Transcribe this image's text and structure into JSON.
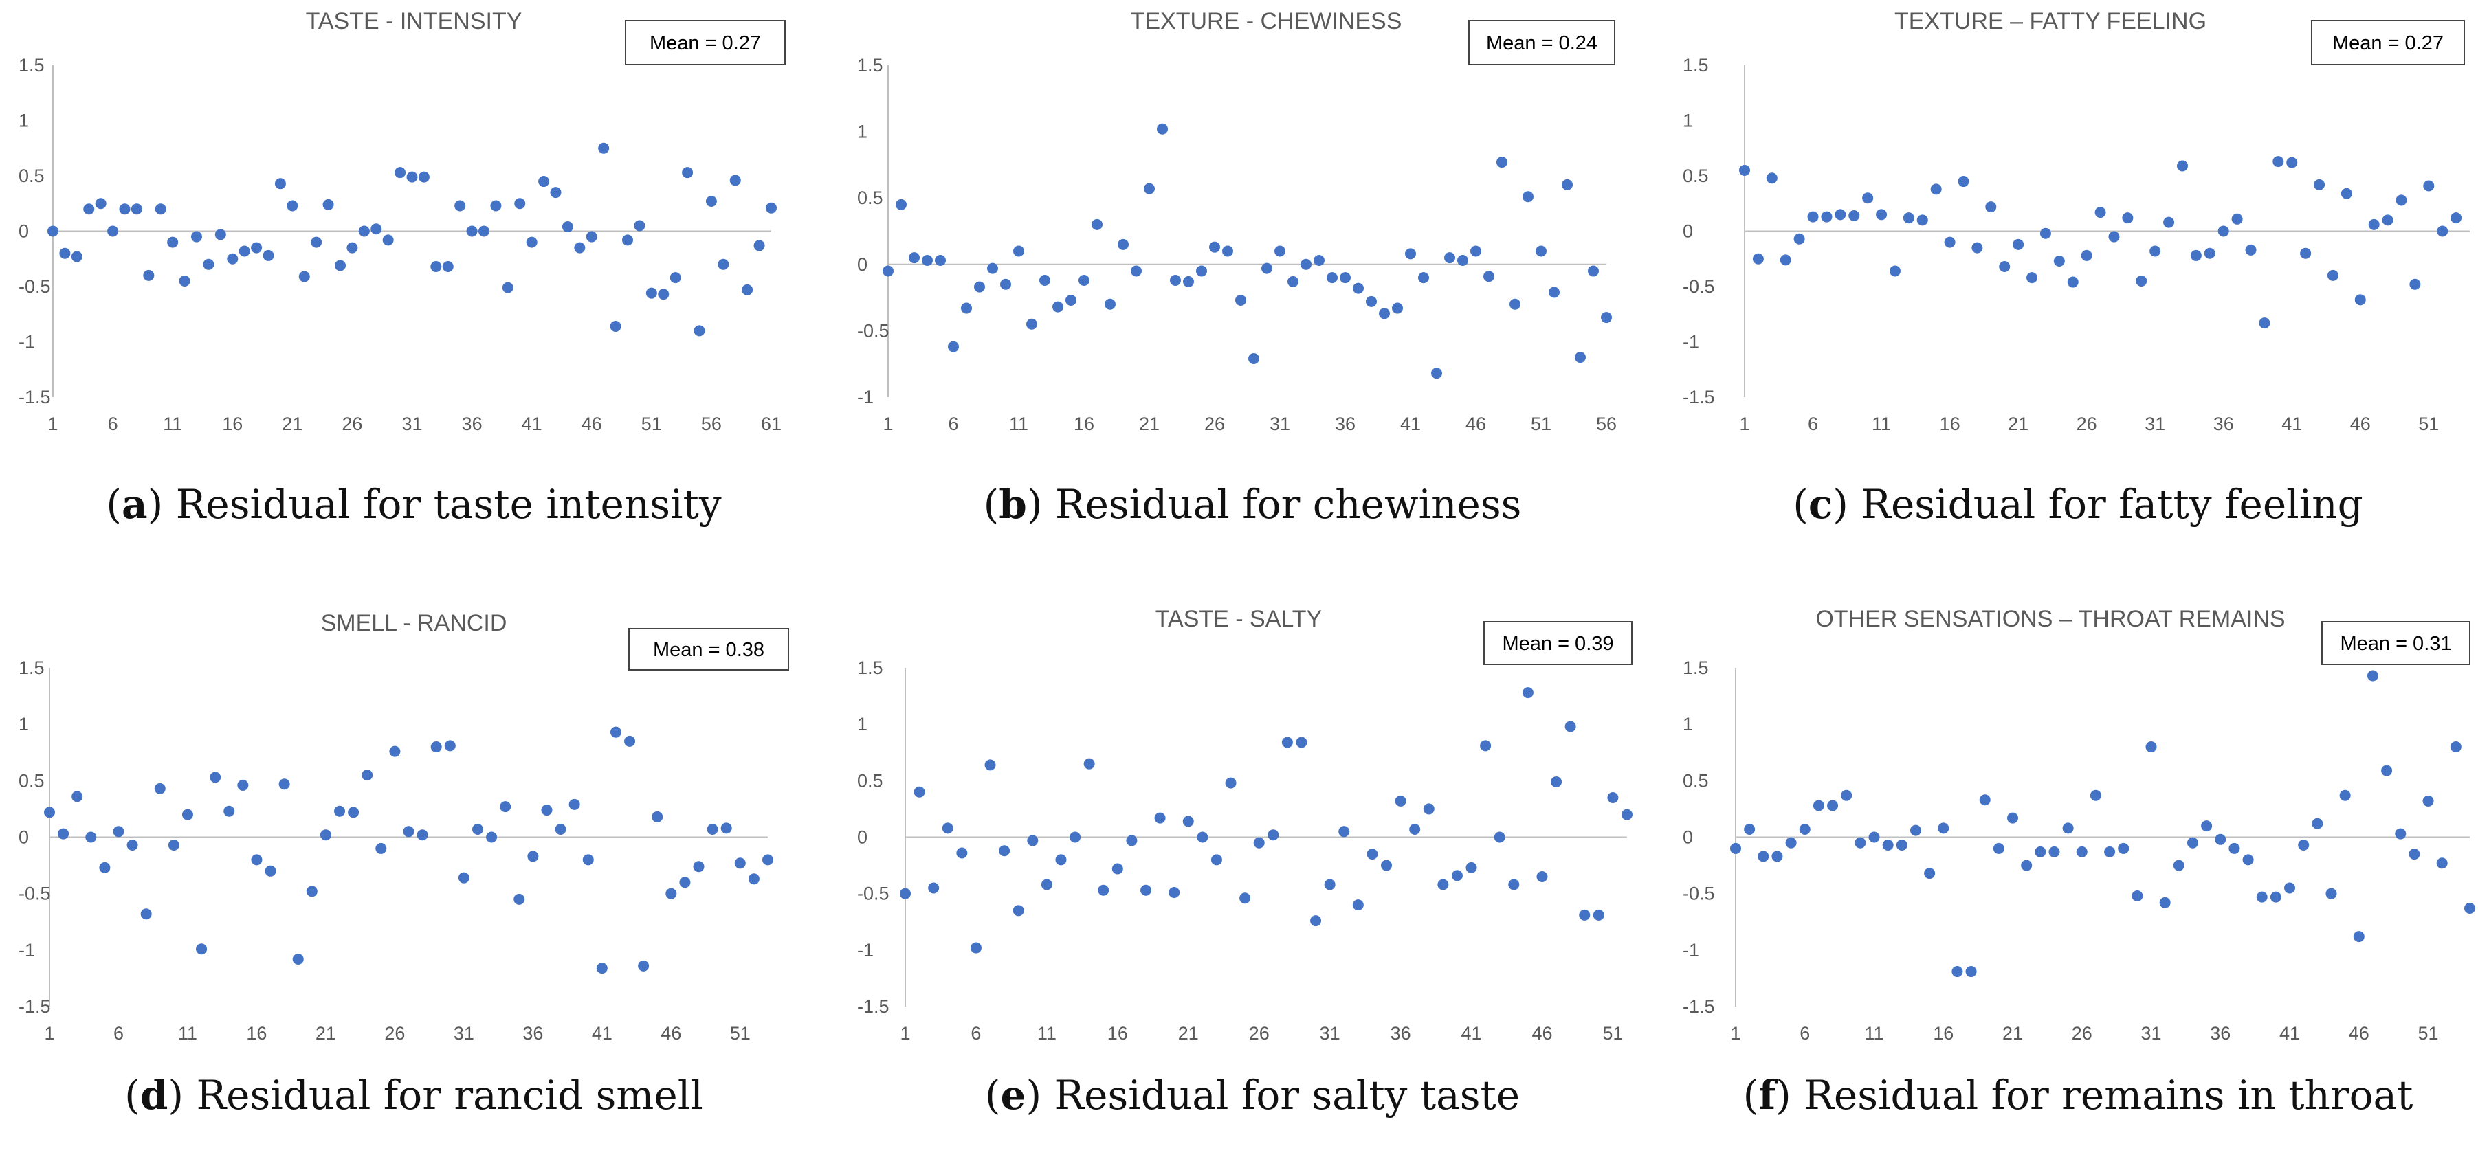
{
  "colors": {
    "marker": "#4472C4",
    "axis": "#BFBFBF",
    "text": "#595959",
    "mean_box_border": "#444444"
  },
  "chart_data": [
    {
      "id": "a",
      "type": "scatter",
      "title": "TASTE - INTENSITY",
      "mean_label": "Mean = 0.27",
      "caption_letter": "a",
      "caption_text": " Residual for taste intensity",
      "ylim": [
        -1.5,
        1.5
      ],
      "yticks": [
        1.5,
        1,
        0.5,
        0,
        -0.5,
        -1,
        -1.5
      ],
      "xlim": [
        1,
        61
      ],
      "xticks": [
        1,
        6,
        11,
        16,
        21,
        26,
        31,
        36,
        41,
        46,
        51,
        56,
        61
      ],
      "y": [
        0,
        -0.2,
        -0.23,
        0.2,
        0.25,
        0,
        0.2,
        0.2,
        -0.4,
        0.2,
        -0.1,
        -0.45,
        -0.05,
        -0.3,
        -0.03,
        -0.25,
        -0.18,
        -0.15,
        -0.22,
        0.43,
        0.23,
        -0.41,
        -0.1,
        0.24,
        -0.31,
        -0.15,
        0,
        0.02,
        -0.08,
        0.53,
        0.49,
        0.49,
        -0.32,
        -0.32,
        0.23,
        0,
        0,
        0.23,
        -0.51,
        0.25,
        -0.1,
        0.45,
        0.35,
        0.04,
        -0.15,
        -0.05,
        0.75,
        -0.86,
        -0.08,
        0.05,
        -0.56,
        -0.57,
        -0.42,
        0.53,
        -0.9,
        0.27,
        -0.3,
        0.46,
        -0.53,
        -0.13,
        0.21
      ]
    },
    {
      "id": "b",
      "type": "scatter",
      "title": "TEXTURE - CHEWINESS",
      "mean_label": "Mean = 0.24",
      "caption_letter": "b",
      "caption_text": " Residual for chewiness",
      "ylim": [
        -1,
        1.5
      ],
      "yticks": [
        1.5,
        1,
        0.5,
        0,
        -0.5,
        -1
      ],
      "xlim": [
        1,
        56
      ],
      "xticks": [
        1,
        6,
        11,
        16,
        21,
        26,
        31,
        36,
        41,
        46,
        51,
        56
      ],
      "y": [
        -0.05,
        0.45,
        0.05,
        0.03,
        0.03,
        -0.62,
        -0.33,
        -0.17,
        -0.03,
        -0.15,
        0.1,
        -0.45,
        -0.12,
        -0.32,
        -0.27,
        -0.12,
        0.3,
        -0.3,
        0.15,
        -0.05,
        0.57,
        1.02,
        -0.12,
        -0.13,
        -0.05,
        0.13,
        0.1,
        -0.27,
        -0.71,
        -0.03,
        0.1,
        -0.13,
        0,
        0.03,
        -0.1,
        -0.1,
        -0.18,
        -0.28,
        -0.37,
        -0.33,
        0.08,
        -0.1,
        -0.82,
        0.05,
        0.03,
        0.1,
        -0.09,
        0.77,
        -0.3,
        0.51,
        0.1,
        -0.21,
        0.6,
        -0.7,
        -0.05,
        -0.4
      ]
    },
    {
      "id": "c",
      "type": "scatter",
      "title": "TEXTURE – FATTY FEELING",
      "mean_label": "Mean = 0.27",
      "caption_letter": "c",
      "caption_text": " Residual for fatty feeling",
      "ylim": [
        -1.5,
        1.5
      ],
      "yticks": [
        1.5,
        1,
        0.5,
        0,
        -0.5,
        -1,
        -1.5
      ],
      "xlim": [
        1,
        54
      ],
      "xticks": [
        1,
        6,
        11,
        16,
        21,
        26,
        31,
        36,
        41,
        46,
        51
      ],
      "y": [
        0.55,
        -0.25,
        0.48,
        -0.26,
        -0.07,
        0.13,
        0.13,
        0.15,
        0.14,
        0.3,
        0.15,
        -0.36,
        0.12,
        0.1,
        0.38,
        -0.1,
        0.45,
        -0.15,
        0.22,
        -0.32,
        -0.12,
        -0.42,
        -0.02,
        -0.27,
        -0.46,
        -0.22,
        0.17,
        -0.05,
        0.12,
        -0.45,
        -0.18,
        0.08,
        0.59,
        -0.22,
        -0.2,
        0,
        0.11,
        -0.17,
        -0.83,
        0.63,
        0.62,
        -0.2,
        0.42,
        -0.4,
        0.34,
        -0.62,
        0.06,
        0.1,
        0.28,
        -0.48,
        0.41,
        0,
        0.12
      ]
    },
    {
      "id": "d",
      "type": "scatter",
      "title": "SMELL - RANCID",
      "mean_label": "Mean = 0.38",
      "caption_letter": "d",
      "caption_text": " Residual for rancid smell",
      "ylim": [
        -1.5,
        1.5
      ],
      "yticks": [
        1.5,
        1,
        0.5,
        0,
        -0.5,
        -1,
        -1.5
      ],
      "xlim": [
        1,
        53
      ],
      "xticks": [
        1,
        6,
        11,
        16,
        21,
        26,
        31,
        36,
        41,
        46,
        51
      ],
      "y": [
        0.22,
        0.03,
        0.36,
        0,
        -0.27,
        0.05,
        -0.07,
        -0.68,
        0.43,
        -0.07,
        0.2,
        -0.99,
        0.53,
        0.23,
        0.46,
        -0.2,
        -0.3,
        0.47,
        -1.08,
        -0.48,
        0.02,
        0.23,
        0.22,
        0.55,
        -0.1,
        0.76,
        0.05,
        0.02,
        0.8,
        0.81,
        -0.36,
        0.07,
        0,
        0.27,
        -0.55,
        -0.17,
        0.24,
        0.07,
        0.29,
        -0.2,
        -1.16,
        0.93,
        0.85,
        -1.14,
        0.18,
        -0.5,
        -0.4,
        -0.26,
        0.07,
        0.08,
        -0.23,
        -0.37,
        -0.2
      ]
    },
    {
      "id": "e",
      "type": "scatter",
      "title": "TASTE - SALTY",
      "mean_label": "Mean = 0.39",
      "caption_letter": "e",
      "caption_text": " Residual for salty taste",
      "ylim": [
        -1.5,
        1.5
      ],
      "yticks": [
        1.5,
        1,
        0.5,
        0,
        -0.5,
        -1,
        -1.5
      ],
      "xlim": [
        1,
        52
      ],
      "xticks": [
        1,
        6,
        11,
        16,
        21,
        26,
        31,
        36,
        41,
        46,
        51
      ],
      "y": [
        -0.5,
        0.4,
        -0.45,
        0.08,
        -0.14,
        -0.98,
        0.64,
        -0.12,
        -0.65,
        -0.03,
        -0.42,
        -0.2,
        0,
        0.65,
        -0.47,
        -0.28,
        -0.03,
        -0.47,
        0.17,
        -0.49,
        0.14,
        0,
        -0.2,
        0.48,
        -0.54,
        -0.05,
        0.02,
        0.84,
        0.84,
        -0.74,
        -0.42,
        0.05,
        -0.6,
        -0.15,
        -0.25,
        0.32,
        0.07,
        0.25,
        -0.42,
        -0.34,
        -0.27,
        0.81,
        0,
        -0.42,
        1.28,
        -0.35,
        0.49,
        0.98,
        -0.69,
        -0.69,
        0.35,
        0.2
      ]
    },
    {
      "id": "f",
      "type": "scatter",
      "title": "OTHER SENSATIONS – THROAT REMAINS",
      "mean_label": "Mean = 0.31",
      "caption_letter": "f",
      "caption_text": " Residual for remains in throat",
      "ylim": [
        -1.5,
        1.5
      ],
      "yticks": [
        1.5,
        1,
        0.5,
        0,
        -0.5,
        -1,
        -1.5
      ],
      "xlim": [
        1,
        54
      ],
      "xticks": [
        1,
        6,
        11,
        16,
        21,
        26,
        31,
        36,
        41,
        46,
        51
      ],
      "y": [
        -0.1,
        0.07,
        -0.17,
        -0.17,
        -0.05,
        0.07,
        0.28,
        0.28,
        0.37,
        -0.05,
        0,
        -0.07,
        -0.07,
        0.06,
        -0.32,
        0.08,
        -1.19,
        -1.19,
        0.33,
        -0.1,
        0.17,
        -0.25,
        -0.13,
        -0.13,
        0.08,
        -0.13,
        0.37,
        -0.13,
        -0.1,
        -0.52,
        0.8,
        -0.58,
        -0.25,
        -0.05,
        0.1,
        -0.02,
        -0.1,
        -0.2,
        -0.53,
        -0.53,
        -0.45,
        -0.07,
        0.12,
        -0.5,
        0.37,
        -0.88,
        1.43,
        0.59,
        0.03,
        -0.15,
        0.32,
        -0.23,
        0.8,
        -0.63
      ]
    }
  ]
}
